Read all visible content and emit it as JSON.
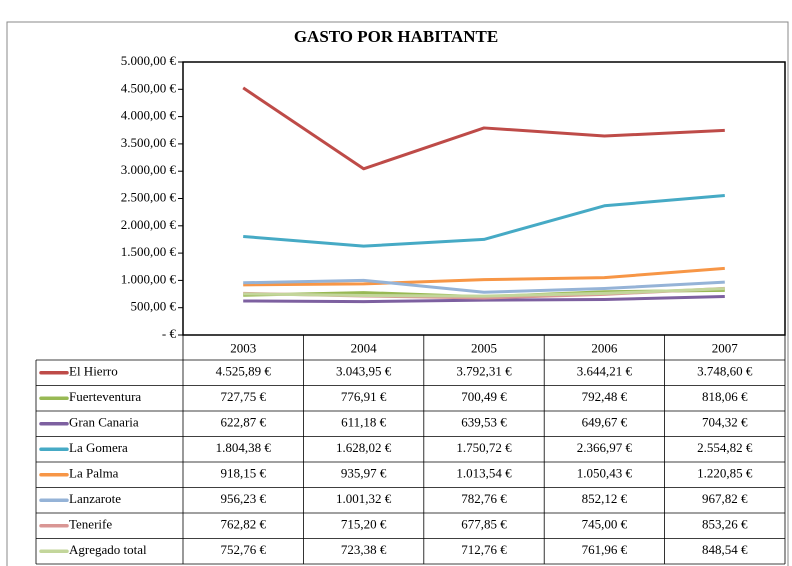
{
  "chart_data": {
    "type": "line",
    "title": "GASTO POR HABITANTE",
    "categories": [
      "2003",
      "2004",
      "2005",
      "2006",
      "2007"
    ],
    "ylim": [
      0,
      5000
    ],
    "yticks": [
      {
        "value": 0,
        "label": "-   €"
      },
      {
        "value": 500,
        "label": "500,00 €"
      },
      {
        "value": 1000,
        "label": "1.000,00 €"
      },
      {
        "value": 1500,
        "label": "1.500,00 €"
      },
      {
        "value": 2000,
        "label": "2.000,00 €"
      },
      {
        "value": 2500,
        "label": "2.500,00 €"
      },
      {
        "value": 3000,
        "label": "3.000,00 €"
      },
      {
        "value": 3500,
        "label": "3.500,00 €"
      },
      {
        "value": 4000,
        "label": "4.000,00 €"
      },
      {
        "value": 4500,
        "label": "4.500,00 €"
      },
      {
        "value": 5000,
        "label": "5.000,00 €"
      }
    ],
    "series": [
      {
        "name": "El Hierro",
        "color": "#be4b48",
        "values": [
          4525.89,
          3043.95,
          3792.31,
          3644.21,
          3748.6
        ],
        "value_labels": [
          "4.525,89 €",
          "3.043,95 €",
          "3.792,31 €",
          "3.644,21 €",
          "3.748,60 €"
        ]
      },
      {
        "name": "Fuerteventura",
        "color": "#98b954",
        "values": [
          727.75,
          776.91,
          700.49,
          792.48,
          818.06
        ],
        "value_labels": [
          "727,75 €",
          "776,91 €",
          "700,49 €",
          "792,48 €",
          "818,06 €"
        ]
      },
      {
        "name": "Gran Canaria",
        "color": "#7d60a0",
        "values": [
          622.87,
          611.18,
          639.53,
          649.67,
          704.32
        ],
        "value_labels": [
          "622,87 €",
          "611,18 €",
          "639,53 €",
          "649,67 €",
          "704,32 €"
        ]
      },
      {
        "name": "La Gomera",
        "color": "#46aac5",
        "values": [
          1804.38,
          1628.02,
          1750.72,
          2366.97,
          2554.82
        ],
        "value_labels": [
          "1.804,38 €",
          "1.628,02 €",
          "1.750,72 €",
          "2.366,97 €",
          "2.554,82 €"
        ]
      },
      {
        "name": "La Palma",
        "color": "#f79646",
        "values": [
          918.15,
          935.97,
          1013.54,
          1050.43,
          1220.85
        ],
        "value_labels": [
          "918,15 €",
          "935,97 €",
          "1.013,54 €",
          "1.050,43 €",
          "1.220,85 €"
        ]
      },
      {
        "name": "Lanzarote",
        "color": "#95b3d7",
        "values": [
          956.23,
          1001.32,
          782.76,
          852.12,
          967.82
        ],
        "value_labels": [
          "956,23 €",
          "1.001,32 €",
          "782,76 €",
          "852,12 €",
          "967,82 €"
        ]
      },
      {
        "name": "Tenerife",
        "color": "#d99694",
        "values": [
          762.82,
          715.2,
          677.85,
          745.0,
          853.26
        ],
        "value_labels": [
          "762,82 €",
          "715,20 €",
          "677,85 €",
          "745,00 €",
          "853,26 €"
        ]
      },
      {
        "name": "Agregado total",
        "color": "#c3d69b",
        "values": [
          752.76,
          723.38,
          712.76,
          761.96,
          848.54
        ],
        "value_labels": [
          "752,76 €",
          "723,38 €",
          "712,76 €",
          "761,96 €",
          "848,54 €"
        ]
      }
    ]
  }
}
